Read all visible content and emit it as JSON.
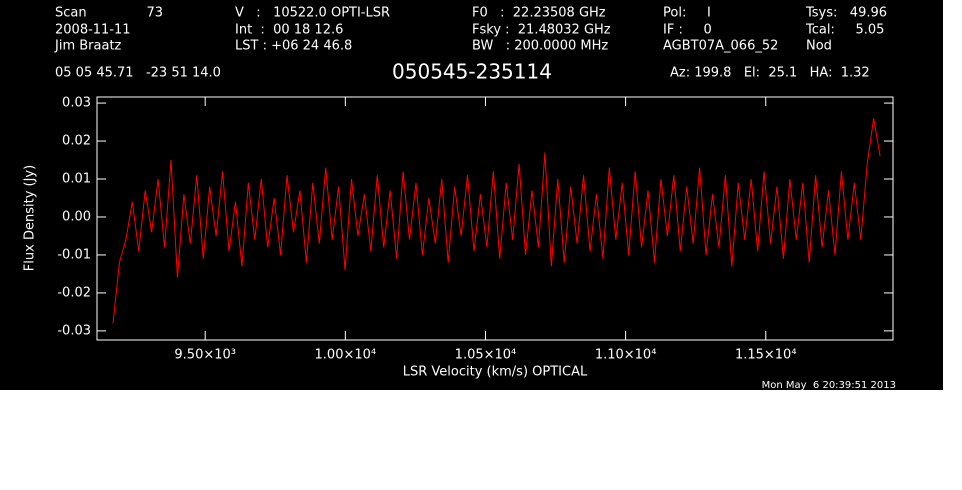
{
  "chart_data": {
    "type": "line",
    "title": "050545-235114",
    "header": [
      "Scan",
      "73",
      "V   :   10522.0 OPTI-LSR",
      "F0   :  22.23508 GHz",
      "Pol:     I",
      "Tsys:   49.96",
      "2008-11-11",
      "Int  :  00 18 12.6",
      "Fsky :  21.48032 GHz",
      "IF :     0",
      "Tcal:     5.05",
      "Jim Braatz",
      "LST : +06 24 46.8",
      "BW   : 200.0000 MHz",
      "AGBT07A_066_52",
      "Nod",
      "05 05 45.71   -23 51 14.0",
      "Az: 199.8   El:  25.1   HA:  1.32"
    ],
    "xlabel": "LSR Velocity (km/s) OPTICAL",
    "ylabel": "Flux Density (Jy)",
    "timestamp": "Mon May  6 20:39:51 2013",
    "xlim": [
      9114,
      11954
    ],
    "ylim": [
      -0.0324,
      0.0316
    ],
    "xticks": [
      {
        "value": 9500,
        "label": "9.50×10³"
      },
      {
        "value": 10000,
        "label": "1.00×10⁴"
      },
      {
        "value": 10500,
        "label": "1.05×10⁴"
      },
      {
        "value": 11000,
        "label": "1.10×10⁴"
      },
      {
        "value": 11500,
        "label": "1.15×10⁴"
      }
    ],
    "yticks": [
      -0.03,
      -0.02,
      -0.01,
      {
        "value": 0,
        "label": "0.00"
      },
      0.01,
      0.02,
      0.03
    ],
    "x": [
      9171,
      9194,
      9217,
      9240,
      9263,
      9286,
      9309,
      9332,
      9355,
      9378,
      9401,
      9424,
      9447,
      9470,
      9493,
      9516,
      9539,
      9562,
      9585,
      9608,
      9631,
      9654,
      9677,
      9700,
      9723,
      9746,
      9769,
      9792,
      9815,
      9838,
      9861,
      9884,
      9907,
      9930,
      9953,
      9976,
      9999,
      10022,
      10045,
      10068,
      10091,
      10114,
      10137,
      10160,
      10183,
      10206,
      10229,
      10252,
      10275,
      10298,
      10321,
      10344,
      10367,
      10390,
      10413,
      10436,
      10459,
      10482,
      10505,
      10528,
      10551,
      10574,
      10597,
      10620,
      10643,
      10666,
      10689,
      10712,
      10735,
      10758,
      10781,
      10804,
      10827,
      10850,
      10873,
      10896,
      10919,
      10942,
      10965,
      10988,
      11011,
      11034,
      11057,
      11080,
      11103,
      11126,
      11149,
      11172,
      11195,
      11218,
      11241,
      11264,
      11287,
      11310,
      11333,
      11356,
      11379,
      11402,
      11425,
      11448,
      11471,
      11494,
      11517,
      11540,
      11563,
      11586,
      11609,
      11632,
      11655,
      11678,
      11701,
      11724,
      11747,
      11770,
      11793,
      11816,
      11839,
      11862,
      11885,
      11908
    ],
    "series": [
      {
        "color": "#ff0000",
        "values": [
          -0.028,
          -0.012,
          -0.006,
          0.004,
          -0.009,
          0.007,
          -0.004,
          0.01,
          -0.008,
          0.015,
          -0.016,
          0.006,
          -0.007,
          0.011,
          -0.011,
          0.008,
          -0.005,
          0.012,
          -0.009,
          0.004,
          -0.013,
          0.009,
          -0.006,
          0.01,
          -0.008,
          0.005,
          -0.01,
          0.011,
          -0.004,
          0.007,
          -0.012,
          0.009,
          -0.007,
          0.013,
          -0.006,
          0.008,
          -0.014,
          0.01,
          -0.005,
          0.006,
          -0.009,
          0.011,
          -0.008,
          0.007,
          -0.011,
          0.012,
          -0.006,
          0.009,
          -0.01,
          0.005,
          -0.007,
          0.01,
          -0.012,
          0.008,
          -0.005,
          0.011,
          -0.009,
          0.006,
          -0.008,
          0.012,
          -0.011,
          0.009,
          -0.006,
          0.014,
          -0.01,
          0.007,
          -0.008,
          0.017,
          -0.013,
          0.01,
          -0.012,
          0.008,
          -0.007,
          0.011,
          -0.009,
          0.006,
          -0.011,
          0.013,
          -0.006,
          0.009,
          -0.01,
          0.012,
          -0.008,
          0.007,
          -0.012,
          0.01,
          -0.005,
          0.011,
          -0.009,
          0.008,
          -0.007,
          0.013,
          -0.01,
          0.006,
          -0.008,
          0.011,
          -0.013,
          0.009,
          -0.006,
          0.01,
          -0.009,
          0.012,
          -0.007,
          0.008,
          -0.011,
          0.01,
          -0.006,
          0.009,
          -0.012,
          0.011,
          -0.008,
          0.007,
          -0.01,
          0.012,
          -0.006,
          0.009,
          -0.006,
          0.014,
          0.026,
          0.016
        ]
      }
    ]
  }
}
